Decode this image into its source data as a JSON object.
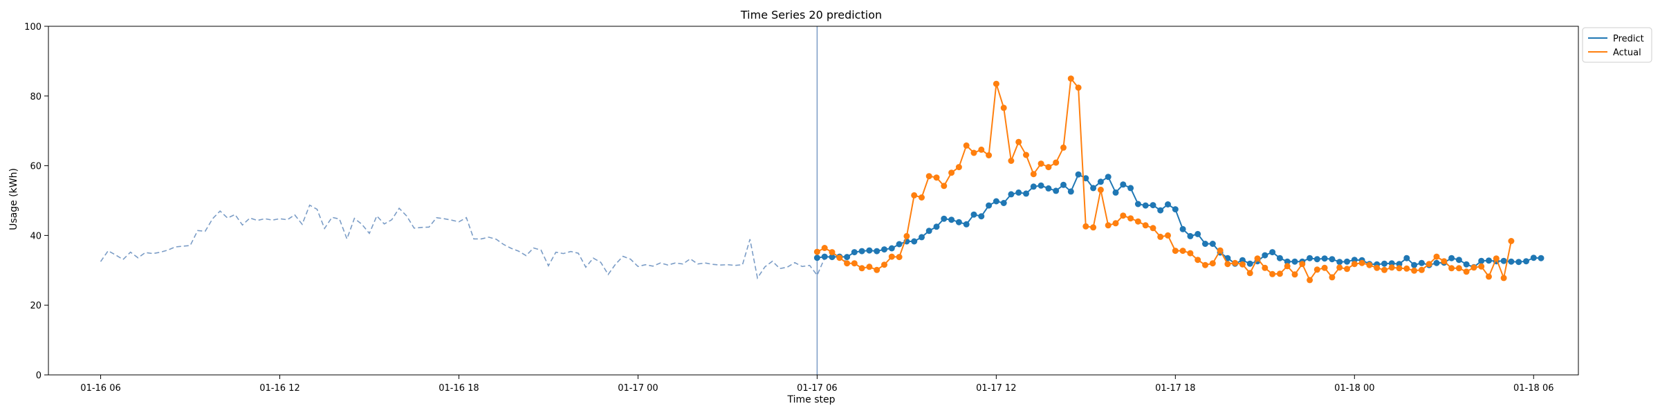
{
  "chart_data": {
    "type": "line",
    "title": "Time Series 20 prediction",
    "xlabel": "Time step",
    "ylabel": "Usage (kWh)",
    "ylim": [
      0,
      100
    ],
    "xlim": [
      "2024-01-16 04:15",
      "2024-01-18 07:30"
    ],
    "yticks": [
      0,
      20,
      40,
      60,
      80,
      100
    ],
    "xticks": [
      {
        "t": "2024-01-16 06:00",
        "label": "01-16 06"
      },
      {
        "t": "2024-01-16 12:00",
        "label": "01-16 12"
      },
      {
        "t": "2024-01-16 18:00",
        "label": "01-16 18"
      },
      {
        "t": "2024-01-17 00:00",
        "label": "01-17 00"
      },
      {
        "t": "2024-01-17 06:00",
        "label": "01-17 06"
      },
      {
        "t": "2024-01-17 12:00",
        "label": "01-17 12"
      },
      {
        "t": "2024-01-17 18:00",
        "label": "01-17 18"
      },
      {
        "t": "2024-01-18 00:00",
        "label": "01-18 00"
      },
      {
        "t": "2024-01-18 06:00",
        "label": "01-18 06"
      }
    ],
    "divider_x": "2024-01-17 06:00",
    "legend_position": "upper right, outside plot",
    "grid": false,
    "history": {
      "start": "2024-01-16 06:00",
      "interval_minutes": 15,
      "color": "#7a9cc6",
      "style": "dashed",
      "values": [
        32.5,
        35.6,
        34.4,
        33.1,
        35.2,
        33.6,
        35.1,
        34.8,
        35.2,
        35.8,
        36.7,
        36.9,
        37.1,
        41.4,
        41.2,
        44.8,
        47.0,
        45.0,
        46.0,
        43.0,
        45.0,
        44.3,
        44.8,
        44.4,
        44.8,
        44.5,
        45.9,
        43.2,
        48.7,
        47.5,
        42.0,
        45.2,
        44.7,
        39.0,
        44.9,
        43.2,
        40.6,
        45.6,
        43.3,
        44.5,
        47.8,
        45.6,
        42.1,
        42.3,
        42.4,
        45.1,
        44.8,
        44.4,
        43.9,
        45.1,
        39.0,
        39.0,
        39.5,
        38.9,
        37.4,
        36.3,
        35.5,
        34.2,
        36.4,
        35.8,
        31.3,
        35.2,
        34.8,
        35.4,
        34.9,
        30.9,
        33.5,
        32.3,
        28.8,
        31.8,
        34.0,
        33.2,
        31.1,
        31.6,
        31.2,
        32.1,
        31.5,
        32.1,
        31.8,
        33.3,
        31.8,
        32.1,
        31.7,
        31.5,
        31.6,
        31.4,
        31.6,
        38.9,
        27.8,
        31.0,
        32.6,
        30.5,
        30.9,
        32.2,
        31.1,
        31.4,
        28.6,
        33.5,
        34.0,
        33.6,
        32.5
      ]
    },
    "series": [
      {
        "name": "Predict",
        "color": "#1f77b4",
        "start": "2024-01-17 06:00",
        "interval_minutes": 15,
        "values": [
          33.6,
          33.9,
          33.8,
          33.9,
          33.8,
          35.2,
          35.5,
          35.7,
          35.5,
          36.0,
          36.3,
          37.5,
          38.3,
          38.3,
          39.5,
          41.3,
          42.5,
          44.8,
          44.5,
          43.8,
          43.2,
          46.0,
          45.5,
          48.6,
          49.8,
          49.3,
          51.8,
          52.3,
          52.0,
          54.0,
          54.3,
          53.5,
          52.8,
          54.5,
          52.6,
          57.5,
          56.4,
          53.6,
          55.4,
          56.8,
          52.3,
          54.6,
          53.6,
          49.0,
          48.6,
          48.7,
          47.2,
          48.9,
          47.5,
          41.8,
          39.8,
          40.4,
          37.6,
          37.6,
          35.1,
          33.5,
          31.9,
          32.9,
          31.9,
          32.6,
          34.3,
          35.2,
          33.5,
          32.5,
          32.5,
          32.5,
          33.5,
          33.2,
          33.4,
          33.2,
          32.4,
          32.5,
          33.0,
          32.9,
          31.8,
          31.7,
          31.9,
          32.0,
          31.8,
          33.5,
          31.5,
          32.1,
          31.5,
          32.1,
          32.2,
          33.5,
          33.0,
          31.7,
          30.9,
          32.7,
          32.8,
          32.6,
          32.7,
          32.5,
          32.4,
          32.6,
          33.6,
          33.5
        ]
      },
      {
        "name": "Actual",
        "color": "#ff7f0e",
        "start": "2024-01-17 06:00",
        "interval_minutes": 15,
        "values": [
          35.3,
          36.4,
          35.2,
          33.6,
          32.0,
          32.0,
          30.6,
          31.0,
          30.1,
          31.6,
          33.9,
          33.8,
          39.8,
          51.5,
          50.9,
          57.0,
          56.6,
          54.2,
          58.0,
          59.6,
          65.8,
          63.7,
          64.6,
          63.0,
          83.5,
          76.6,
          61.4,
          66.8,
          63.1,
          57.6,
          60.6,
          59.6,
          60.9,
          65.2,
          85.0,
          82.4,
          42.6,
          42.3,
          53.1,
          42.9,
          43.5,
          45.7,
          44.9,
          44.0,
          42.9,
          42.1,
          39.6,
          40.0,
          35.6,
          35.6,
          34.9,
          33.0,
          31.5,
          32.0,
          35.7,
          31.8,
          32.1,
          31.7,
          29.2,
          33.4,
          30.7,
          28.9,
          29.0,
          31.2,
          28.8,
          31.8,
          27.2,
          30.2,
          30.7,
          28.0,
          30.8,
          30.4,
          31.8,
          32.1,
          31.5,
          30.7,
          30.1,
          30.8,
          30.6,
          30.5,
          29.9,
          30.1,
          31.8,
          33.9,
          32.6,
          30.6,
          30.6,
          29.6,
          30.8,
          31.1,
          28.2,
          33.4,
          27.8,
          38.4
        ]
      }
    ]
  }
}
